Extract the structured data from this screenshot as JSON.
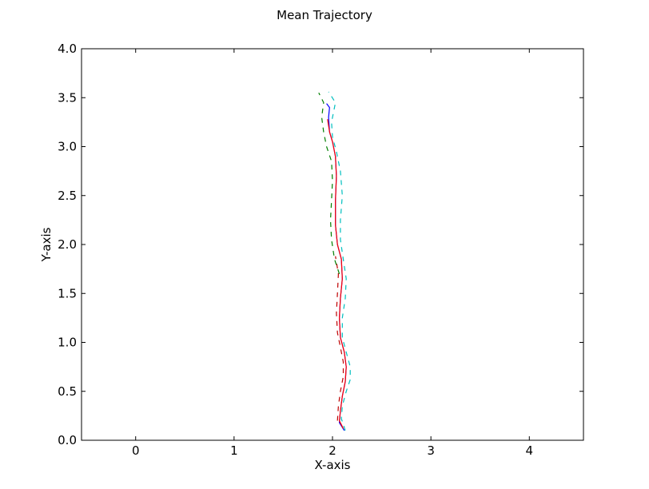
{
  "chart_data": {
    "type": "line",
    "title": "Mean Trajectory",
    "xlabel": "X-axis",
    "ylabel": "Y-axis",
    "xlim": [
      -0.55,
      4.55
    ],
    "ylim": [
      0.0,
      4.0
    ],
    "xticks": [
      0,
      1,
      2,
      3,
      4
    ],
    "xtick_labels": [
      "0",
      "1",
      "2",
      "3",
      "4"
    ],
    "yticks": [
      0.0,
      0.5,
      1.0,
      1.5,
      2.0,
      2.5,
      3.0,
      3.5,
      4.0
    ],
    "ytick_labels": [
      "0.0",
      "0.5",
      "1.0",
      "1.5",
      "2.0",
      "2.5",
      "3.0",
      "3.5",
      "4.0"
    ],
    "grid": false,
    "legend": null,
    "series": [
      {
        "color": "#0000ff",
        "style": "solid",
        "x": [
          2.12,
          2.07,
          2.08,
          2.1,
          2.13,
          2.14,
          2.12,
          2.08,
          2.07,
          2.08,
          2.1,
          2.09,
          2.05,
          2.03,
          2.03,
          2.04,
          2.03,
          2.0,
          1.97,
          1.96,
          1.97,
          1.94
        ],
        "y": [
          0.1,
          0.18,
          0.3,
          0.45,
          0.6,
          0.75,
          0.9,
          1.05,
          1.25,
          1.45,
          1.65,
          1.85,
          2.0,
          2.2,
          2.45,
          2.7,
          2.9,
          3.05,
          3.15,
          3.3,
          3.4,
          3.44
        ]
      },
      {
        "color": "#ff0000",
        "style": "solid",
        "x": [
          2.11,
          2.07,
          2.08,
          2.1,
          2.13,
          2.14,
          2.12,
          2.08,
          2.07,
          2.08,
          2.1,
          2.09,
          2.05,
          2.03,
          2.03,
          2.04,
          2.03,
          2.0,
          1.97,
          1.95
        ],
        "y": [
          0.12,
          0.2,
          0.3,
          0.45,
          0.6,
          0.75,
          0.9,
          1.05,
          1.25,
          1.45,
          1.65,
          1.85,
          2.0,
          2.2,
          2.45,
          2.7,
          2.9,
          3.05,
          3.15,
          3.28
        ]
      },
      {
        "color": "#bf0000",
        "style": "dashed",
        "x": [
          2.05,
          2.06,
          2.08,
          2.11,
          2.11,
          2.08,
          2.05,
          2.04,
          2.05,
          2.06,
          2.03
        ],
        "y": [
          0.2,
          0.35,
          0.5,
          0.65,
          0.8,
          0.95,
          1.1,
          1.3,
          1.5,
          1.7,
          1.88
        ]
      },
      {
        "color": "#007f00",
        "style": "dashed",
        "x": [
          2.07,
          2.02,
          1.99,
          1.98,
          1.99,
          2.0,
          1.99,
          1.94,
          1.91,
          1.89,
          1.91,
          1.86
        ],
        "y": [
          1.7,
          1.85,
          2.05,
          2.25,
          2.45,
          2.65,
          2.85,
          3.0,
          3.15,
          3.3,
          3.45,
          3.55
        ]
      },
      {
        "color": "#00bfbf",
        "style": "dashed",
        "x": [
          2.13,
          2.09,
          2.1,
          2.14,
          2.18,
          2.18,
          2.14,
          2.1,
          2.1,
          2.13,
          2.14,
          2.11,
          2.08,
          2.08,
          2.1,
          2.08,
          2.04,
          2.0,
          1.99,
          2.03,
          1.96
        ],
        "y": [
          0.1,
          0.22,
          0.35,
          0.5,
          0.62,
          0.75,
          0.9,
          1.05,
          1.25,
          1.45,
          1.65,
          1.85,
          2.05,
          2.25,
          2.5,
          2.75,
          2.95,
          3.1,
          3.25,
          3.45,
          3.56
        ]
      }
    ]
  }
}
